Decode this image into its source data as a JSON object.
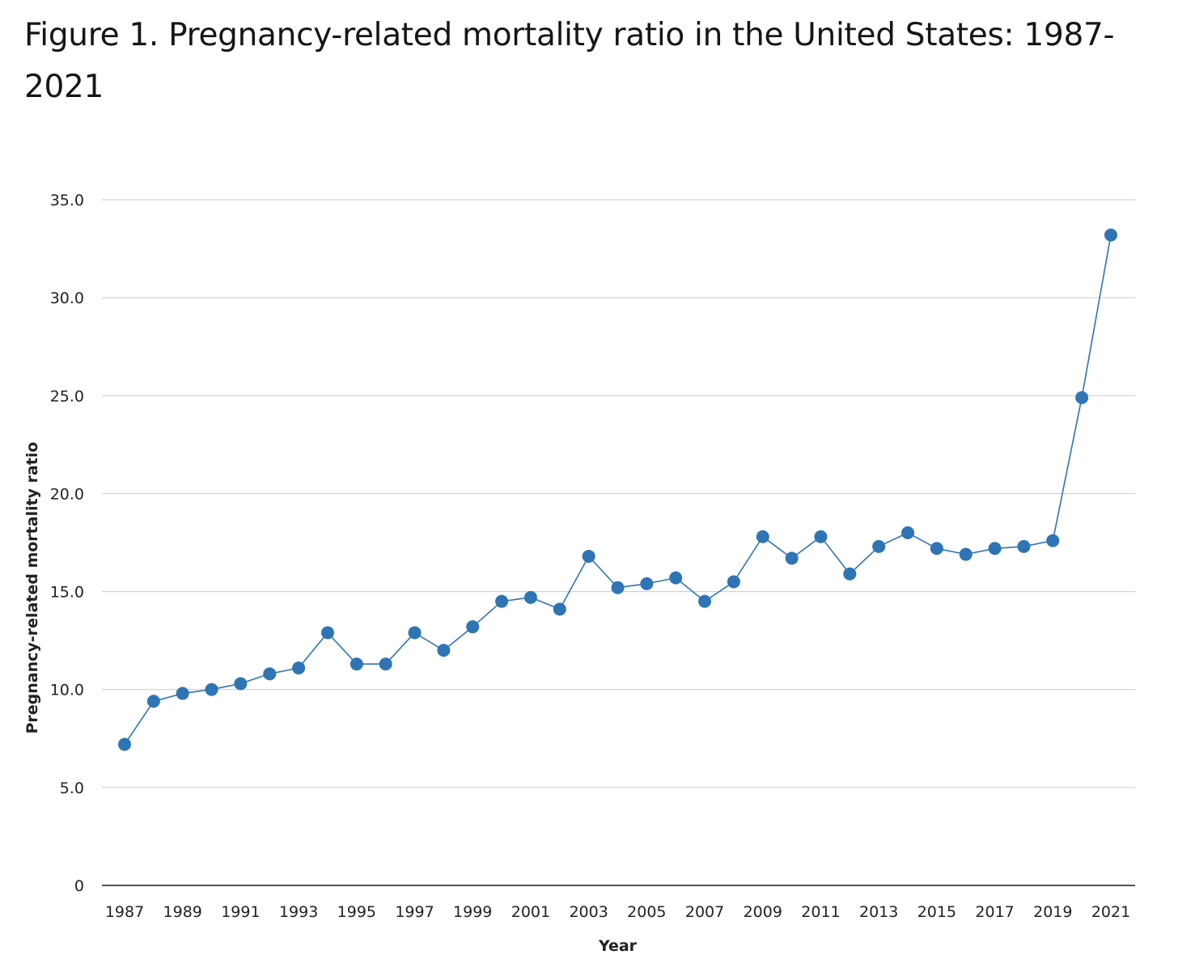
{
  "page": {
    "title": "Figure 1. Pregnancy-related mortality ratio in the United States: 1987-2021"
  },
  "chart_data": {
    "type": "line",
    "xlabel": "Year",
    "ylabel": "Pregnancy-related mortality ratio",
    "ylim": [
      0,
      35
    ],
    "yticks": [
      "0",
      "5.0",
      "10.0",
      "15.0",
      "20.0",
      "25.0",
      "30.0",
      "35.0"
    ],
    "ytick_values": [
      0,
      5,
      10,
      15,
      20,
      25,
      30,
      35
    ],
    "xticks": [
      "1987",
      "1989",
      "1991",
      "1993",
      "1995",
      "1997",
      "1999",
      "2001",
      "2003",
      "2005",
      "2007",
      "2009",
      "2011",
      "2013",
      "2015",
      "2017",
      "2019",
      "2021"
    ],
    "grid": true,
    "legend": "none",
    "color": "#2f74b5",
    "series": [
      {
        "x": [
          1987,
          1988,
          1989,
          1990,
          1991,
          1992,
          1993,
          1994,
          1995,
          1996,
          1997,
          1998,
          1999,
          2000,
          2001,
          2002,
          2003,
          2004,
          2005,
          2006,
          2007,
          2008,
          2009,
          2010,
          2011,
          2012,
          2013,
          2014,
          2015,
          2016,
          2017,
          2018,
          2019,
          2020,
          2021
        ],
        "values": [
          7.2,
          9.4,
          9.8,
          10.0,
          10.3,
          10.8,
          11.1,
          12.9,
          11.3,
          11.3,
          12.9,
          12.0,
          13.2,
          14.5,
          14.7,
          14.1,
          16.8,
          15.2,
          15.4,
          15.7,
          14.5,
          15.5,
          17.8,
          16.7,
          17.8,
          15.9,
          17.3,
          18.0,
          17.2,
          16.9,
          17.2,
          17.3,
          17.6,
          24.9,
          33.2
        ]
      }
    ]
  }
}
